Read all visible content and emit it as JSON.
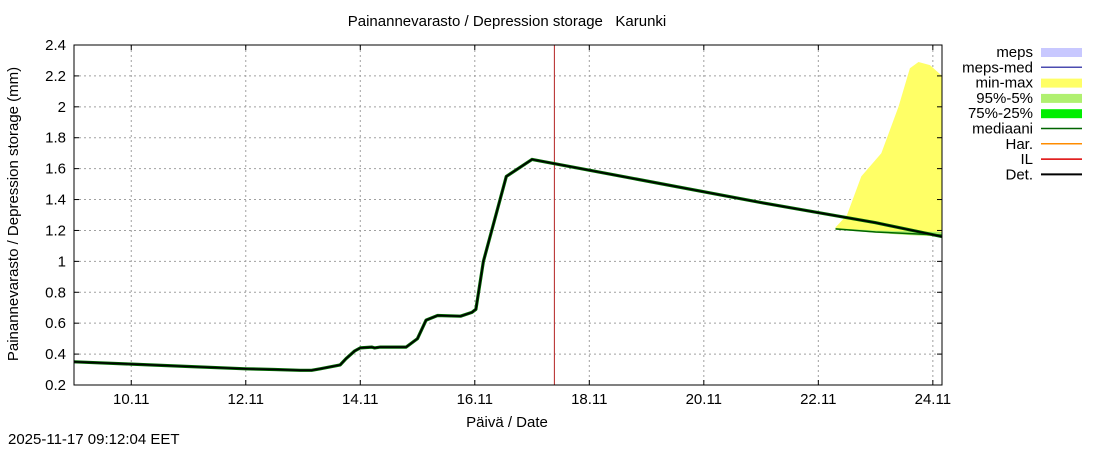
{
  "timestamp": "2025-11-17 09:12:04 EET",
  "chart_data": {
    "type": "line",
    "title": "Painannevarasto / Depression storage   Karunki",
    "xlabel": "Päivä / Date",
    "ylabel": "Painannevarasto / Depression storage (mm)",
    "x_unit": "days since 09.11 00:00",
    "xlim": [
      0,
      15.16
    ],
    "ylim": [
      0.2,
      2.4
    ],
    "yticks": [
      0.2,
      0.4,
      0.6,
      0.8,
      1,
      1.2,
      1.4,
      1.6,
      1.8,
      2,
      2.2,
      2.4
    ],
    "ytick_labels": [
      "0.2",
      "0.4",
      "0.6",
      "0.8",
      "1",
      "1.2",
      "1.4",
      "1.6",
      "1.8",
      "2",
      "2.2",
      "2.4"
    ],
    "xticks": [
      1,
      3,
      5,
      7,
      9,
      11,
      13,
      15
    ],
    "xtick_labels": [
      "10.11",
      "12.11",
      "14.11",
      "16.11",
      "18.11",
      "20.11",
      "22.11",
      "24.11"
    ],
    "grid": true,
    "legend_position": "outside-right",
    "forecast_start_x": 8.39,
    "legend": [
      {
        "label": "meps",
        "color": "#c8c8ff",
        "style": "box"
      },
      {
        "label": "meps-med",
        "color": "#4b4bb0",
        "style": "line"
      },
      {
        "label": "min-max",
        "color": "#ffff66",
        "style": "box"
      },
      {
        "label": "95%-5%",
        "color": "#b0f070",
        "style": "box"
      },
      {
        "label": "75%-25%",
        "color": "#00ee00",
        "style": "box"
      },
      {
        "label": "mediaani",
        "color": "#006400",
        "style": "line"
      },
      {
        "label": "Har.",
        "color": "#ff8c00",
        "style": "line"
      },
      {
        "label": "IL",
        "color": "#dd0000",
        "style": "line"
      },
      {
        "label": "Det.",
        "color": "#000000",
        "style": "line"
      }
    ],
    "series": [
      {
        "name": "Det.",
        "color": "#000000",
        "x": [
          0,
          1,
          2,
          3,
          3.5,
          3.95,
          4.05,
          4.15,
          4.3,
          4.65,
          4.75,
          4.9,
          5.0,
          5.2,
          5.25,
          5.35,
          5.8,
          6.0,
          6.15,
          6.35,
          6.75,
          6.95,
          7.02,
          7.15,
          7.55,
          8,
          10,
          12,
          14,
          15.16
        ],
        "y": [
          0.35,
          0.335,
          0.32,
          0.305,
          0.3,
          0.295,
          0.295,
          0.295,
          0.305,
          0.33,
          0.37,
          0.42,
          0.44,
          0.445,
          0.44,
          0.445,
          0.445,
          0.5,
          0.62,
          0.65,
          0.645,
          0.67,
          0.69,
          1.0,
          1.55,
          1.66,
          1.52,
          1.38,
          1.25,
          1.16
        ]
      },
      {
        "name": "mediaani",
        "color": "#006400",
        "x": [
          13.3,
          14,
          15.16
        ],
        "y": [
          1.21,
          1.19,
          1.17
        ]
      }
    ],
    "bands": [
      {
        "name": "min-max",
        "color": "#ffff66",
        "x": [
          13.3,
          13.5,
          13.75,
          14.1,
          14.4,
          14.6,
          14.75,
          14.95,
          15.16
        ],
        "upper": [
          1.22,
          1.3,
          1.55,
          1.7,
          2.0,
          2.25,
          2.29,
          2.27,
          2.2
        ],
        "lower": [
          1.21,
          1.205,
          1.2,
          1.19,
          1.18,
          1.175,
          1.17,
          1.165,
          1.16
        ]
      },
      {
        "name": "95%-5%",
        "color": "#b0f070",
        "x": [
          13.3,
          14,
          14.6,
          15.16
        ],
        "upper": [
          1.215,
          1.2,
          1.195,
          1.19
        ],
        "lower": [
          1.205,
          1.185,
          1.17,
          1.16
        ]
      }
    ]
  }
}
